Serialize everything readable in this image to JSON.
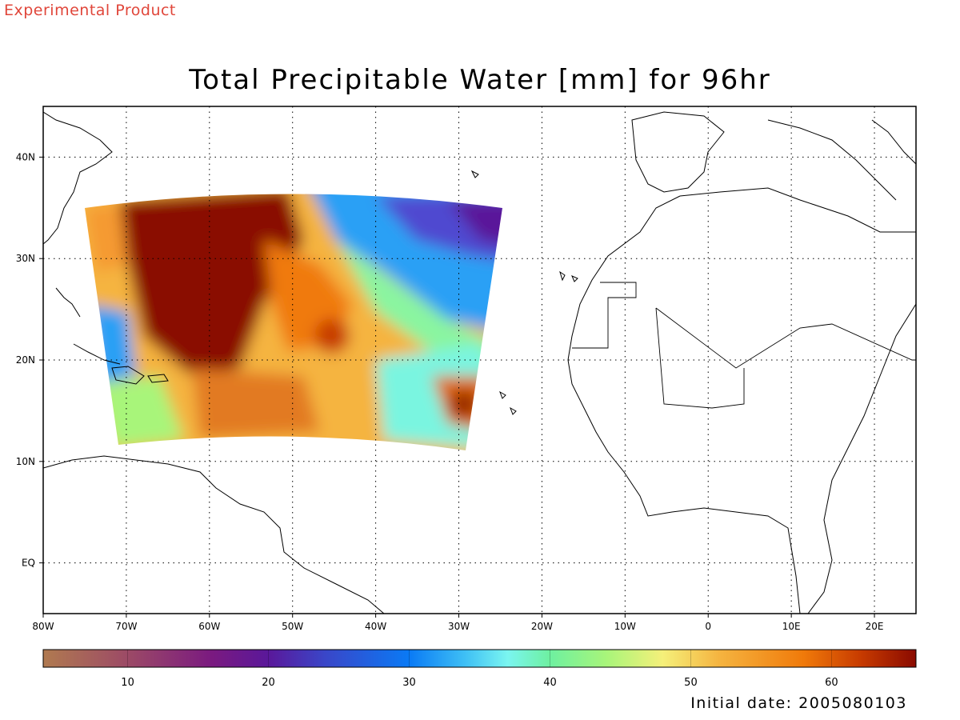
{
  "header": {
    "experimental_label": "Experimental Product",
    "title": "Total Precipitable Water [mm] for 96hr"
  },
  "footer": {
    "initial_date": "Initial date: 2005080103"
  },
  "map": {
    "lon_range": [
      -80,
      25
    ],
    "lat_range": [
      -5,
      45
    ],
    "lon_ticks": [
      {
        "value": -80,
        "label": "80W"
      },
      {
        "value": -70,
        "label": "70W"
      },
      {
        "value": -60,
        "label": "60W"
      },
      {
        "value": -50,
        "label": "50W"
      },
      {
        "value": -40,
        "label": "40W"
      },
      {
        "value": -30,
        "label": "30W"
      },
      {
        "value": -20,
        "label": "20W"
      },
      {
        "value": -10,
        "label": "10W"
      },
      {
        "value": 0,
        "label": "0"
      },
      {
        "value": 10,
        "label": "10E"
      },
      {
        "value": 20,
        "label": "20E"
      }
    ],
    "lat_ticks": [
      {
        "value": 0,
        "label": "EQ"
      },
      {
        "value": 10,
        "label": "10N"
      },
      {
        "value": 20,
        "label": "20N"
      },
      {
        "value": 30,
        "label": "30N"
      },
      {
        "value": 40,
        "label": "40N"
      }
    ],
    "grid": true,
    "colors": {
      "background": "#ffffff",
      "coastline": "#000000",
      "grid": "#000000"
    }
  },
  "colorbar": {
    "range": [
      4,
      66
    ],
    "ticks": [
      {
        "value": 10,
        "label": "10"
      },
      {
        "value": 20,
        "label": "20"
      },
      {
        "value": 30,
        "label": "30"
      },
      {
        "value": 40,
        "label": "40"
      },
      {
        "value": 50,
        "label": "50"
      },
      {
        "value": 60,
        "label": "60"
      }
    ],
    "stops": [
      {
        "value": 4,
        "color": "#b07a50"
      },
      {
        "value": 10,
        "color": "#9c4a66"
      },
      {
        "value": 16,
        "color": "#7a1a80"
      },
      {
        "value": 20,
        "color": "#5a189a"
      },
      {
        "value": 24,
        "color": "#3a46c8"
      },
      {
        "value": 30,
        "color": "#0a7af5"
      },
      {
        "value": 34,
        "color": "#3fc0f5"
      },
      {
        "value": 37,
        "color": "#7af5f0"
      },
      {
        "value": 40,
        "color": "#6ef0a0"
      },
      {
        "value": 44,
        "color": "#a8f57a"
      },
      {
        "value": 48,
        "color": "#f5f07a"
      },
      {
        "value": 52,
        "color": "#f5b440"
      },
      {
        "value": 58,
        "color": "#f07a0a"
      },
      {
        "value": 62,
        "color": "#c83c00"
      },
      {
        "value": 66,
        "color": "#8a0a00"
      }
    ]
  }
}
